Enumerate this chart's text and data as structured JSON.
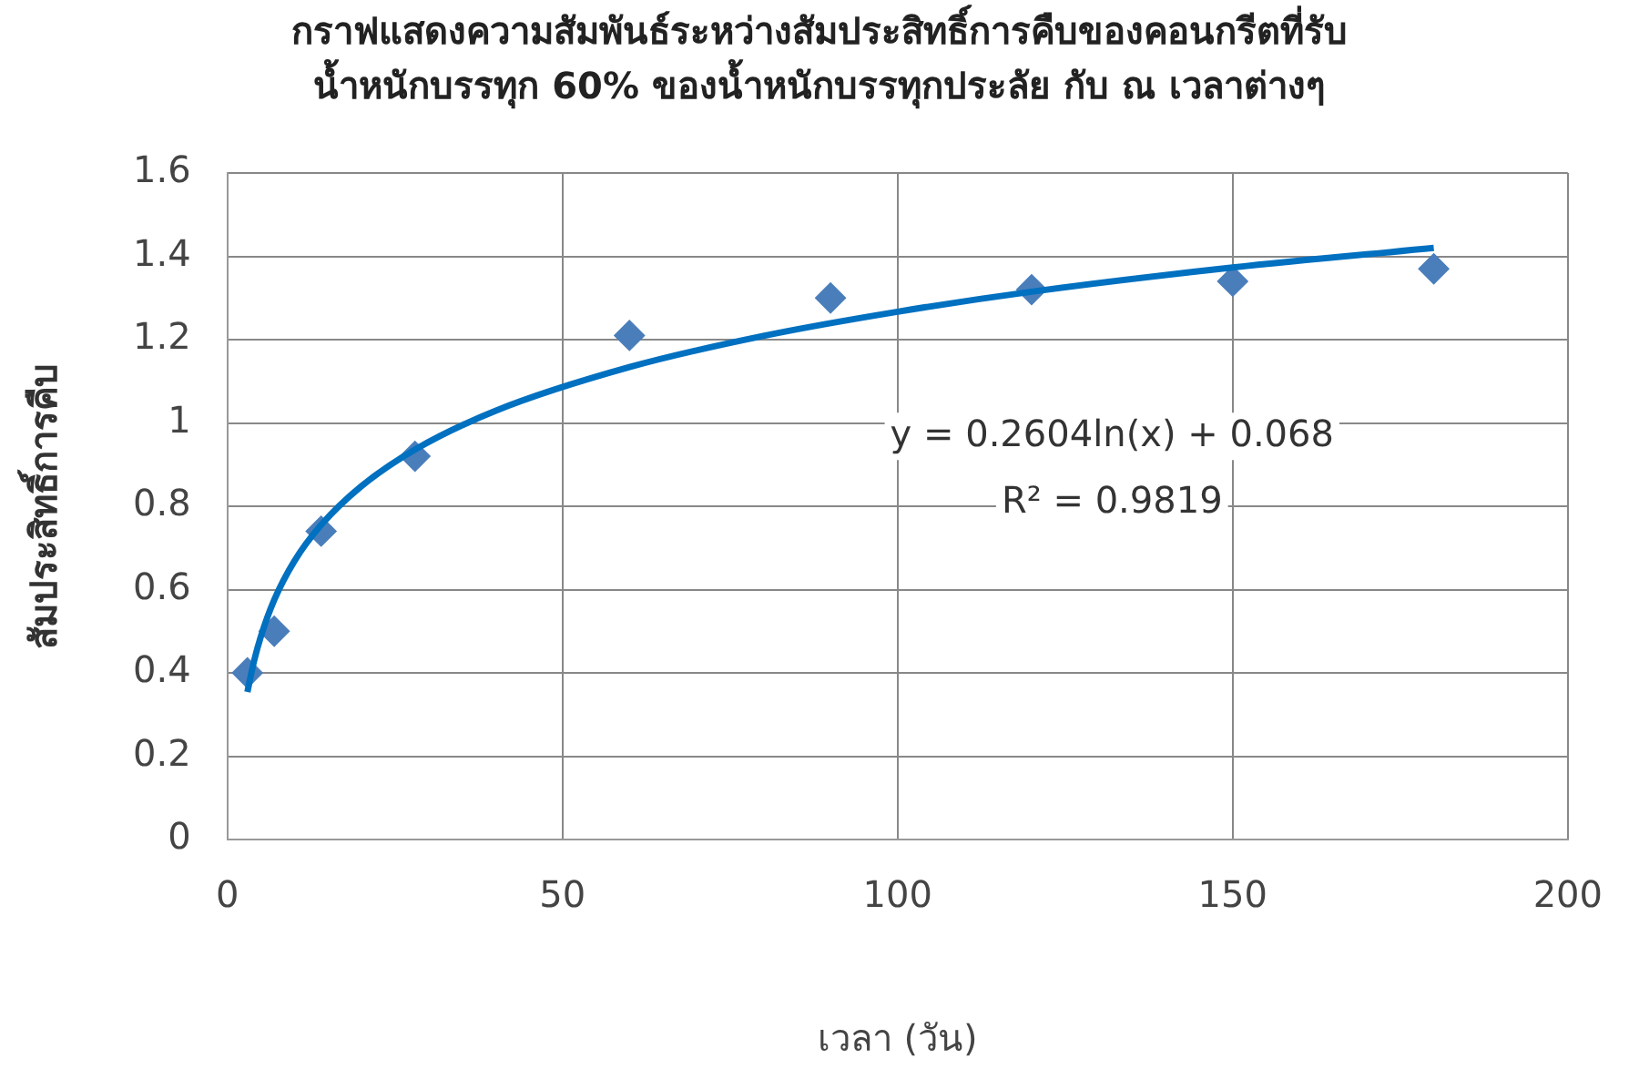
{
  "chart_data": {
    "type": "scatter",
    "title": "กราฟแสดงความสัมพันธ์ระหว่างสัมประสิทธิ์การคืบของคอนกรีตที่รับ\nน้ำหนักบรรทุก 60% ของน้ำหนักบรรทุกประลัย กับ ณ เวลาต่างๆ",
    "xlabel": "เวลา (วัน)",
    "ylabel": "สัมประสิทธิ์การคืบ",
    "x": [
      3,
      7,
      14,
      28,
      60,
      90,
      120,
      150,
      180
    ],
    "series": [
      {
        "color": "#4a7ebb",
        "marker": "diamond",
        "values": [
          0.4,
          0.5,
          0.74,
          0.92,
          1.21,
          1.3,
          1.32,
          1.34,
          1.37
        ]
      },
      {
        "type": "line",
        "color": "#0070c0",
        "marker": "none",
        "x": [
          3,
          4,
          5,
          7,
          10,
          14,
          20,
          28,
          40,
          60,
          80,
          100,
          120,
          150,
          180
        ],
        "values": [
          0.354,
          0.429,
          0.487,
          0.575,
          0.668,
          0.755,
          0.848,
          0.936,
          1.029,
          1.134,
          1.209,
          1.267,
          1.315,
          1.373,
          1.42
        ]
      }
    ],
    "annotations": [
      "y = 0.2604ln(x) + 0.068",
      "R² = 0.9819"
    ],
    "xlim": [
      0,
      200
    ],
    "xticks": [
      0,
      50,
      100,
      150,
      200
    ],
    "ylim": [
      0,
      1.6
    ],
    "yticks": [
      0,
      0.2,
      0.4,
      0.6,
      0.8,
      1,
      1.2,
      1.4,
      1.6
    ],
    "grid": true,
    "legend": false
  }
}
